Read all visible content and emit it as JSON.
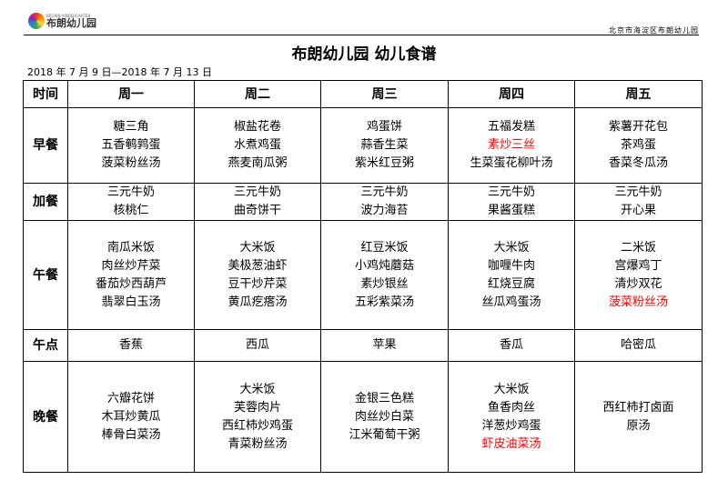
{
  "header": {
    "logo_text": "布朗幼儿园",
    "logo_subtext": "BROWN KINDERGARTEN",
    "address": "北京市海淀区布朗幼儿园"
  },
  "title": "布朗幼儿园 幼儿食谱",
  "date_range": "2018 年 7 月 9 日—2018 年 7 月 13 日",
  "highlight_color": "#ff0000",
  "table": {
    "columns": [
      "时间",
      "周一",
      "周二",
      "周三",
      "周四",
      "周五"
    ],
    "rows": [
      {
        "meal": "早餐",
        "days": [
          [
            {
              "text": "糖三角"
            },
            {
              "text": "五香鹌鹑蛋"
            },
            {
              "text": "菠菜粉丝汤"
            }
          ],
          [
            {
              "text": "椒盐花卷"
            },
            {
              "text": "水煮鸡蛋"
            },
            {
              "text": "燕麦南瓜粥"
            }
          ],
          [
            {
              "text": "鸡蛋饼"
            },
            {
              "text": "蒜香生菜"
            },
            {
              "text": "紫米红豆粥"
            }
          ],
          [
            {
              "text": "五福发糕"
            },
            {
              "text": "素炒三丝",
              "red": true
            },
            {
              "text": "生菜蛋花柳叶汤"
            }
          ],
          [
            {
              "text": "紫薯开花包"
            },
            {
              "text": "茶鸡蛋"
            },
            {
              "text": "香菜冬瓜汤"
            }
          ]
        ]
      },
      {
        "meal": "加餐",
        "days": [
          [
            {
              "text": "三元牛奶"
            },
            {
              "text": "核桃仁"
            }
          ],
          [
            {
              "text": "三元牛奶"
            },
            {
              "text": "曲奇饼干"
            }
          ],
          [
            {
              "text": "三元牛奶"
            },
            {
              "text": "波力海苔"
            }
          ],
          [
            {
              "text": "三元牛奶"
            },
            {
              "text": "果酱蛋糕"
            }
          ],
          [
            {
              "text": "三元牛奶"
            },
            {
              "text": "开心果"
            }
          ]
        ]
      },
      {
        "meal": "午餐",
        "days": [
          [
            {
              "text": "南瓜米饭"
            },
            {
              "text": "肉丝炒芹菜"
            },
            {
              "text": "番茄炒西葫芦"
            },
            {
              "text": "翡翠白玉汤"
            }
          ],
          [
            {
              "text": "大米饭"
            },
            {
              "text": "美极葱油虾"
            },
            {
              "text": "豆干炒芹菜"
            },
            {
              "text": "黄瓜疙瘩汤"
            }
          ],
          [
            {
              "text": "红豆米饭"
            },
            {
              "text": "小鸡炖蘑菇"
            },
            {
              "text": "素炒银丝"
            },
            {
              "text": "五彩紫菜汤"
            }
          ],
          [
            {
              "text": "大米饭"
            },
            {
              "text": "咖喱牛肉"
            },
            {
              "text": "红烧豆腐"
            },
            {
              "text": "丝瓜鸡蛋汤"
            }
          ],
          [
            {
              "text": "二米饭"
            },
            {
              "text": "宫爆鸡丁"
            },
            {
              "text": "清炒双花"
            },
            {
              "text": "菠菜粉丝汤",
              "red": true
            }
          ]
        ]
      },
      {
        "meal": "午点",
        "days": [
          [
            {
              "text": "香蕉"
            }
          ],
          [
            {
              "text": "西瓜"
            }
          ],
          [
            {
              "text": "苹果"
            }
          ],
          [
            {
              "text": "香瓜"
            }
          ],
          [
            {
              "text": "哈密瓜"
            }
          ]
        ]
      },
      {
        "meal": "晚餐",
        "days": [
          [
            {
              "text": "六瓣花饼"
            },
            {
              "text": "木耳炒黄瓜"
            },
            {
              "text": "棒骨白菜汤"
            }
          ],
          [
            {
              "text": "大米饭"
            },
            {
              "text": "芙蓉肉片"
            },
            {
              "text": "西红柿炒鸡蛋"
            },
            {
              "text": "青菜粉丝汤"
            }
          ],
          [
            {
              "text": "金银三色糕"
            },
            {
              "text": "肉丝炒白菜"
            },
            {
              "text": "江米葡萄干粥"
            }
          ],
          [
            {
              "text": "大米饭"
            },
            {
              "text": "鱼香肉丝"
            },
            {
              "text": "洋葱炒鸡蛋"
            },
            {
              "text": "虾皮油菜汤",
              "red": true
            }
          ],
          [
            {
              "text": "西红柿打卤面"
            },
            {
              "text": "原汤"
            }
          ]
        ]
      }
    ]
  }
}
